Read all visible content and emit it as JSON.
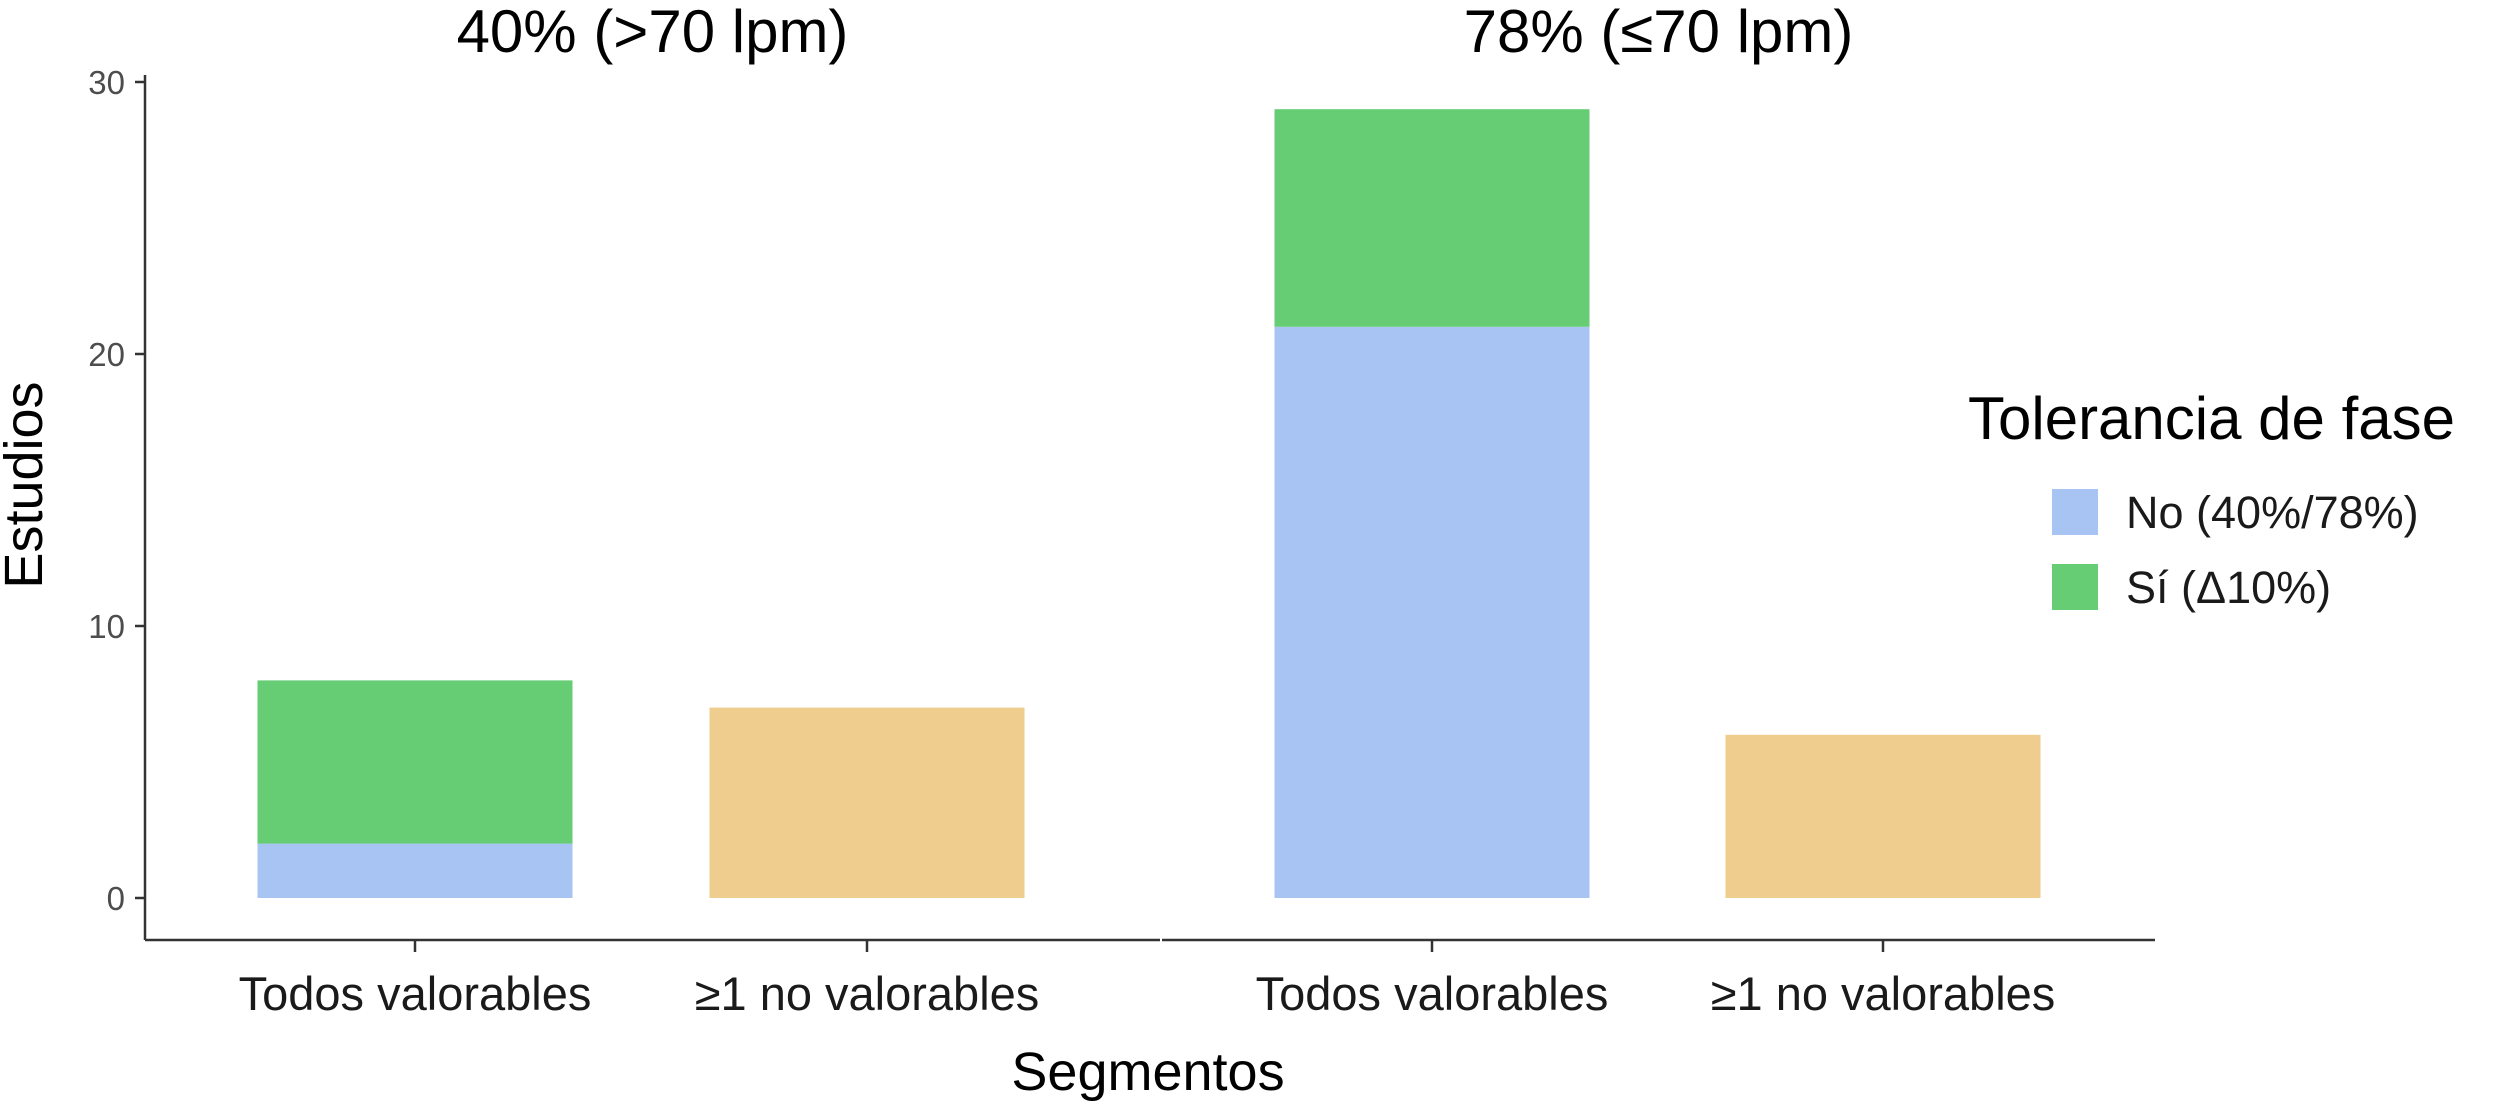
{
  "chart_data": {
    "type": "bar",
    "stacked": true,
    "xlabel": "Segmentos",
    "ylabel": "Estudios",
    "ylim": [
      0,
      31.5
    ],
    "yticks": [
      0,
      10,
      20,
      30
    ],
    "categories": [
      "Todos valorables",
      "≥1 no valorables"
    ],
    "legend": {
      "title": "Tolerancia de fase",
      "placement": "right",
      "entries": [
        {
          "key": "no",
          "label": "No (40%/78%)",
          "color": "#a7c4f2"
        },
        {
          "key": "si",
          "label": "Sí (Δ10%)",
          "color": "#66cd75"
        }
      ]
    },
    "nonvaluable_color": "#efcd8e",
    "panels": [
      {
        "title": "40% (>70 lpm)",
        "bars": [
          {
            "category": "Todos valorables",
            "segments": [
              {
                "key": "no",
                "value": 2
              },
              {
                "key": "si",
                "value": 6
              }
            ]
          },
          {
            "category": "≥1 no valorables",
            "segments": [
              {
                "key": "nv",
                "value": 7
              }
            ]
          }
        ]
      },
      {
        "title": "78% (≤70 lpm)",
        "bars": [
          {
            "category": "Todos valorables",
            "segments": [
              {
                "key": "no",
                "value": 21
              },
              {
                "key": "si",
                "value": 8
              }
            ]
          },
          {
            "category": "≥1 no valorables",
            "segments": [
              {
                "key": "nv",
                "value": 6
              }
            ]
          }
        ]
      }
    ]
  }
}
